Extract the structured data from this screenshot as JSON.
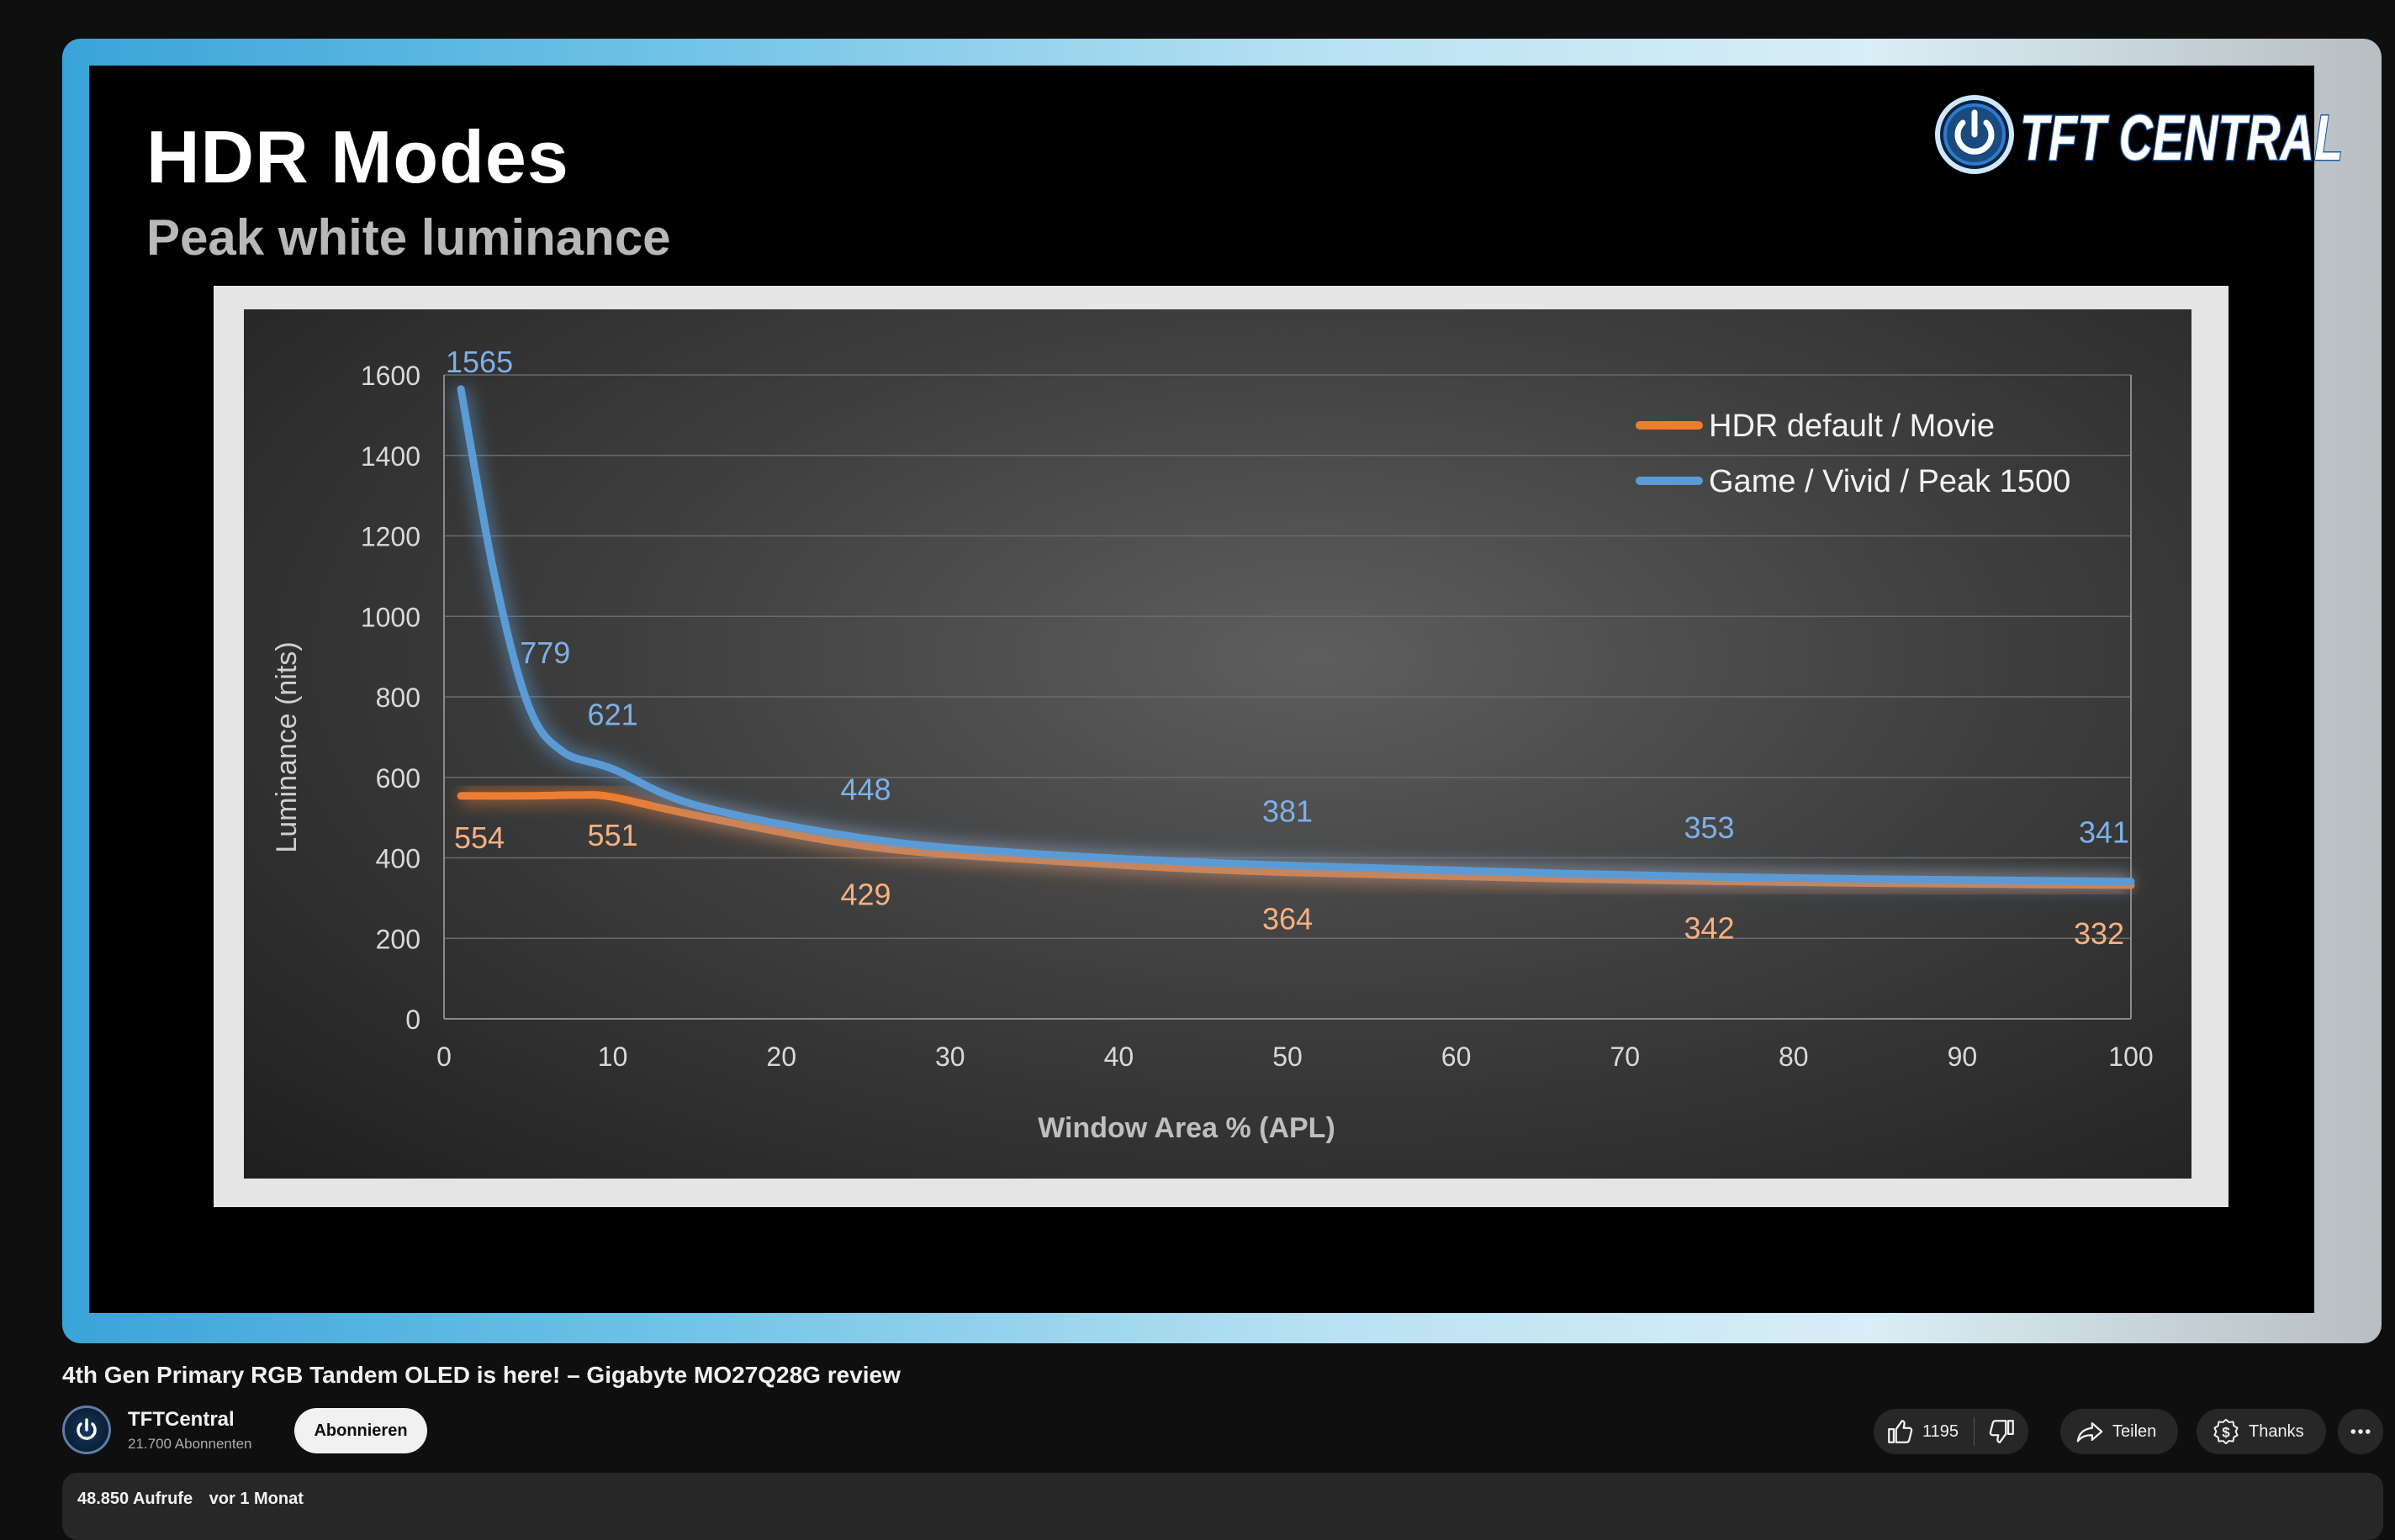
{
  "slide": {
    "title": "HDR Modes",
    "subtitle": "Peak white luminance",
    "logo_text": "TFT CENTRAL"
  },
  "chart_data": {
    "type": "line",
    "xlabel": "Window Area % (APL)",
    "ylabel": "Luminance (nits)",
    "xlim": [
      0,
      100
    ],
    "ylim": [
      0,
      1600
    ],
    "x_ticks": [
      0,
      10,
      20,
      30,
      40,
      50,
      60,
      70,
      80,
      90,
      100
    ],
    "y_ticks": [
      0,
      200,
      400,
      600,
      800,
      1000,
      1200,
      1400,
      1600
    ],
    "grid": true,
    "legend_position": "top-right",
    "series": [
      {
        "name": "HDR default / Movie",
        "color": "#ed7d31",
        "points": [
          [
            1,
            554
          ],
          [
            5,
            554
          ],
          [
            8,
            556
          ],
          [
            10,
            551
          ],
          [
            15,
            505
          ],
          [
            25,
            429
          ],
          [
            35,
            395
          ],
          [
            50,
            364
          ],
          [
            75,
            342
          ],
          [
            100,
            332
          ]
        ],
        "labels": [
          {
            "x": 1,
            "y": 554,
            "text": "554"
          },
          {
            "x": 10,
            "y": 551,
            "text": "551"
          },
          {
            "x": 25,
            "y": 429,
            "text": "429"
          },
          {
            "x": 50,
            "y": 364,
            "text": "364"
          },
          {
            "x": 75,
            "y": 342,
            "text": "342"
          },
          {
            "x": 100,
            "y": 332,
            "text": "332"
          }
        ]
      },
      {
        "name": "Game / Vivid / Peak 1500",
        "color": "#5b9bd5",
        "points": [
          [
            1,
            1565
          ],
          [
            3,
            1100
          ],
          [
            5,
            779
          ],
          [
            7,
            665
          ],
          [
            10,
            621
          ],
          [
            15,
            530
          ],
          [
            25,
            448
          ],
          [
            35,
            410
          ],
          [
            50,
            381
          ],
          [
            75,
            353
          ],
          [
            100,
            341
          ]
        ],
        "labels": [
          {
            "x": 1,
            "y": 1565,
            "text": "1565"
          },
          {
            "x": 5,
            "y": 779,
            "text": "779"
          },
          {
            "x": 10,
            "y": 621,
            "text": "621"
          },
          {
            "x": 25,
            "y": 448,
            "text": "448"
          },
          {
            "x": 50,
            "y": 381,
            "text": "381"
          },
          {
            "x": 75,
            "y": 353,
            "text": "353"
          },
          {
            "x": 100,
            "y": 341,
            "text": "341"
          }
        ]
      }
    ]
  },
  "video": {
    "title": "4th Gen Primary RGB Tandem OLED is here! – Gigabyte MO27Q28G review",
    "channel": "TFTCentral",
    "subscribers": "21.700 Abonnenten",
    "subscribe_label": "Abonnieren",
    "likes": "1195",
    "share_label": "Teilen",
    "thanks_label": "Thanks",
    "views": "48.850 Aufrufe",
    "age": "vor 1 Monat"
  },
  "colors": {
    "page_bg": "#0f0f0f",
    "pill_bg": "#272727",
    "series_orange": "#ed7d31",
    "series_blue": "#5b9bd5"
  }
}
